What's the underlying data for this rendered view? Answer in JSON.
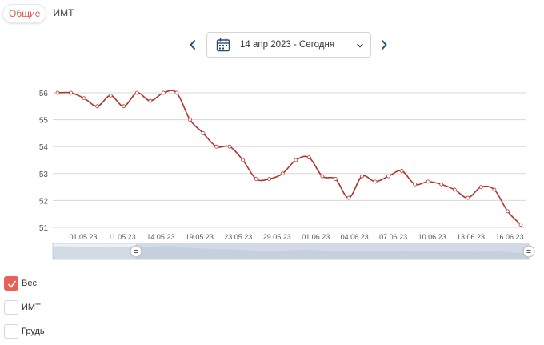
{
  "tabs": [
    {
      "label": "Общие",
      "active": true
    },
    {
      "label": "ИМТ",
      "active": false
    }
  ],
  "date_range": {
    "label": "14 апр 2023 - Сегодня"
  },
  "icons": {
    "prev": "chevron-left-icon",
    "next": "chevron-right-icon",
    "calendar": "calendar-icon",
    "dropdown": "chevron-down-icon"
  },
  "colors": {
    "accent": "#e0594f",
    "line": "#b3332d",
    "nav": "#1f4e79"
  },
  "chart_data": {
    "type": "line",
    "title": "",
    "xlabel": "",
    "ylabel": "",
    "ylim": [
      51,
      56
    ],
    "yticks": [
      51,
      52,
      53,
      54,
      55,
      56
    ],
    "grid": true,
    "x_tick_labels": [
      "01.05.23",
      "11.05.23",
      "14.05.23",
      "19.05.23",
      "23.05.23",
      "29.05.23",
      "01.06.23",
      "04.06.23",
      "07.06.23",
      "10.06.23",
      "13.06.23",
      "16.06.23"
    ],
    "series": [
      {
        "name": "Вес",
        "values": [
          56.0,
          56.0,
          55.8,
          55.5,
          55.9,
          55.5,
          56.0,
          55.7,
          56.0,
          56.0,
          55.0,
          54.5,
          54.0,
          54.0,
          53.5,
          52.8,
          52.8,
          53.0,
          53.5,
          53.6,
          52.9,
          52.8,
          52.1,
          52.9,
          52.7,
          52.9,
          53.1,
          52.6,
          52.7,
          52.6,
          52.4,
          52.1,
          52.5,
          52.4,
          51.6,
          51.1
        ]
      }
    ],
    "range_selector": true
  },
  "legend": [
    {
      "label": "Вес",
      "checked": true
    },
    {
      "label": "ИМТ",
      "checked": false
    },
    {
      "label": "Грудь",
      "checked": false
    }
  ]
}
